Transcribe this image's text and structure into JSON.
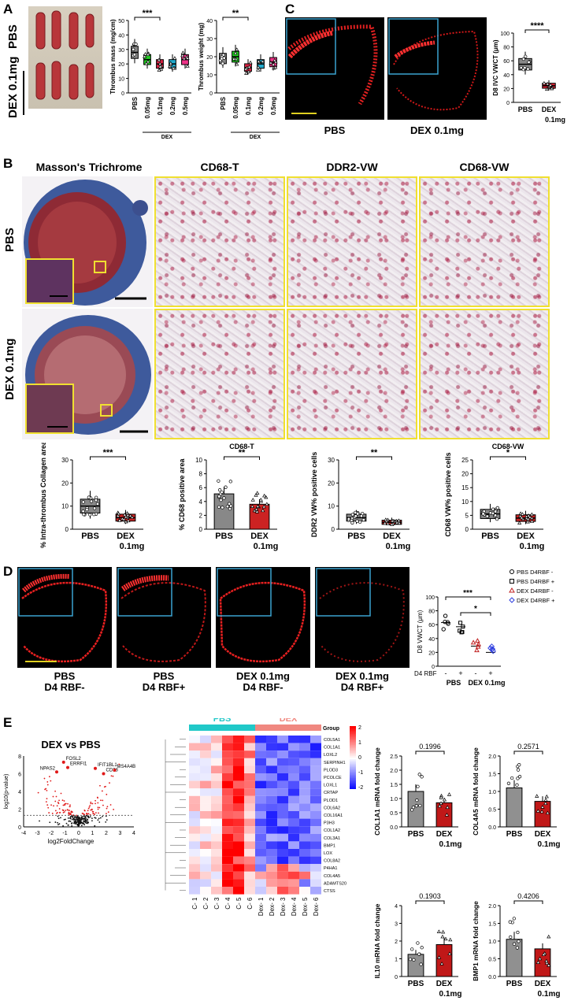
{
  "panels": {
    "A": "A",
    "B": "B",
    "C": "C",
    "D": "D",
    "E": "E"
  },
  "panelA": {
    "row_labels": [
      "PBS",
      "DEX 0.1mg"
    ],
    "chart1": {
      "ylabel": "Thrombus mass (mg/cm)",
      "xticks": [
        "PBS",
        "0.05mg",
        "0.1mg",
        "0.2mg",
        "0.5mg"
      ],
      "group": "DEX",
      "sig": "***",
      "yticks": [
        "0",
        "10",
        "20",
        "30",
        "40",
        "50"
      ]
    },
    "chart2": {
      "ylabel": "Thrombus weight (mg)",
      "xticks": [
        "PBS",
        "0.05mg",
        "0.1mg",
        "0.2mg",
        "0.5mg"
      ],
      "group": "DEX",
      "sig": "**",
      "yticks": [
        "0",
        "10",
        "20",
        "30",
        "40"
      ]
    }
  },
  "panelC": {
    "labels": [
      "PBS",
      "DEX 0.1mg"
    ],
    "chart": {
      "ylabel": "D8 IVC VWCT (μm)",
      "xticks": [
        "PBS",
        "DEX",
        "0.1mg"
      ],
      "sig": "****",
      "yticks": [
        "0",
        "20",
        "40",
        "60",
        "80",
        "100"
      ]
    }
  },
  "panelB": {
    "col_titles": [
      "Masson's Trichrome",
      "CD68-T",
      "DDR2-VW",
      "CD68-VW"
    ],
    "row_labels": [
      "PBS",
      "DEX 0.1mg"
    ],
    "charts": [
      {
        "title": "",
        "ylabel": "% Intra-thrombus Collagen area",
        "xticks": [
          "PBS",
          "DEX",
          "0.1mg"
        ],
        "sig": "***",
        "yticks": [
          "0",
          "10",
          "20",
          "30"
        ]
      },
      {
        "title": "CD68-T",
        "ylabel": "% CD68 positive area",
        "xticks": [
          "PBS",
          "DEX",
          "0.1mg"
        ],
        "sig": "**",
        "yticks": [
          "0",
          "2",
          "4",
          "6",
          "8",
          "10"
        ]
      },
      {
        "title": "",
        "ylabel": "DDR2 VW% positive cells",
        "xticks": [
          "PBS",
          "DEX",
          "0.1mg"
        ],
        "sig": "**",
        "yticks": [
          "0",
          "10",
          "20",
          "30"
        ]
      },
      {
        "title": "CD68-VW",
        "ylabel": "CD68 VW% positive cells",
        "xticks": [
          "PBS",
          "DEX",
          "0.1mg"
        ],
        "sig": "*",
        "yticks": [
          "0",
          "5",
          "10",
          "15",
          "20",
          "25"
        ]
      }
    ]
  },
  "panelD": {
    "labels": [
      "PBS\nD4 RBF-",
      "PBS\nD4 RBF+",
      "DEX 0.1mg\nD4 RBF-",
      "DEX 0.1mg\nD4 RBF+"
    ],
    "chart": {
      "ylabel": "D8 VWCT (μm)",
      "sig1": "***",
      "sig2": "*",
      "rbf_label": "D4 RBF",
      "rbf_signs": [
        "-",
        "+",
        "-",
        "+"
      ],
      "xgroups": [
        "PBS",
        "DEX 0.1mg"
      ],
      "yticks": [
        "0",
        "20",
        "40",
        "60",
        "80",
        "100"
      ]
    },
    "legend": [
      "PBS D4RBF -",
      "PBS D4RBF +",
      "DEX D4RBF -",
      "DEX D4RBF +"
    ]
  },
  "panelE": {
    "volcano": {
      "title": "DEX vs PBS",
      "xlabel": "log2FoldChange",
      "ylabel": "log10(p-value)",
      "genes": [
        "FOSL2",
        "ERRFI1",
        "NPAS2",
        "IFIT1BL1",
        "CD28",
        "MS4A4B"
      ],
      "xticks": [
        "-4",
        "-3",
        "-2",
        "-1",
        "0",
        "1",
        "2",
        "3",
        "4"
      ],
      "yticks": [
        "0",
        "2",
        "4",
        "6",
        "8"
      ]
    },
    "heatmap": {
      "groups": [
        "PBS",
        "DEX"
      ],
      "group_label": "Group",
      "genes": [
        "COL5A1",
        "COL1A1",
        "LOXL2",
        "SERPINH1",
        "PLOD3",
        "PCOLCE",
        "LOXL1",
        "CRTAP",
        "PLOD1",
        "COL6A2",
        "COL16A1",
        "P3H3",
        "COL1A2",
        "COL3A1",
        "BMP1",
        "LOX",
        "COL8A2",
        "P4HA1",
        "COL4A5",
        "ADAMTS20",
        "CTSS"
      ],
      "samples": [
        "C- 1",
        "C- 2",
        "C- 3",
        "C- 4",
        "C- 5",
        "C- 6",
        "Dex- 1",
        "Dex- 2",
        "Dex- 3",
        "Dex- 4",
        "Dex- 5",
        "Dex- 6"
      ],
      "scale": [
        "2",
        "1",
        "0",
        "-1",
        "-2"
      ]
    },
    "bars": [
      {
        "ylabel": "COL1A1 mRNA fold change",
        "p": "0.1996",
        "xticks": [
          "PBS",
          "DEX",
          "0.1mg"
        ],
        "yticks": [
          "0.0",
          "0.5",
          "1.0",
          "1.5",
          "2.0",
          "2.5"
        ]
      },
      {
        "ylabel": "COL4A5 mRNA fold change",
        "p": "0.2571",
        "xticks": [
          "PBS",
          "DEX",
          "0.1mg"
        ],
        "yticks": [
          "0.0",
          "0.5",
          "1.0",
          "1.5",
          "2.0"
        ]
      },
      {
        "ylabel": "IL10 mRNA fold change",
        "p": "0.1903",
        "xticks": [
          "PBS",
          "DEX",
          "0.1mg"
        ],
        "yticks": [
          "0",
          "1",
          "2",
          "3",
          "4"
        ]
      },
      {
        "ylabel": "BMP1 mRNA fold change",
        "p": "0.4206",
        "xticks": [
          "PBS",
          "DEX",
          "0.1mg"
        ],
        "yticks": [
          "0.0",
          "0.5",
          "1.0",
          "1.5",
          "2.0"
        ]
      }
    ]
  },
  "chart_data": [
    {
      "type": "box",
      "panel": "A-1",
      "categories": [
        "PBS",
        "0.05mg",
        "0.1mg",
        "0.2mg",
        "0.5mg"
      ],
      "medians": [
        28,
        23,
        20,
        20,
        23
      ],
      "colors": [
        "#888888",
        "#22cc22",
        "#dd2244",
        "#22aacc",
        "#ee3388"
      ],
      "ylim": [
        0,
        50
      ]
    },
    {
      "type": "box",
      "panel": "A-2",
      "categories": [
        "PBS",
        "0.05mg",
        "0.1mg",
        "0.2mg",
        "0.5mg"
      ],
      "medians": [
        19,
        20,
        14,
        16,
        17
      ],
      "colors": [
        "#888888",
        "#22cc22",
        "#dd2244",
        "#22aacc",
        "#ee3388"
      ],
      "ylim": [
        0,
        40
      ]
    },
    {
      "type": "box",
      "panel": "C",
      "categories": [
        "PBS",
        "DEX 0.1mg"
      ],
      "medians": [
        55,
        24
      ],
      "colors": [
        "#888888",
        "#dd2233"
      ],
      "ylim": [
        0,
        100
      ]
    },
    {
      "type": "box",
      "panel": "B-1",
      "categories": [
        "PBS",
        "DEX 0.1mg"
      ],
      "medians": [
        10,
        5
      ],
      "colors": [
        "#888888",
        "#cc2222"
      ],
      "ylim": [
        0,
        30
      ]
    },
    {
      "type": "bar",
      "panel": "B-2",
      "categories": [
        "PBS",
        "DEX 0.1mg"
      ],
      "values": [
        5.1,
        3.6
      ],
      "colors": [
        "#888888",
        "#cc2222"
      ],
      "ylim": [
        0,
        10
      ]
    },
    {
      "type": "box",
      "panel": "B-3",
      "categories": [
        "PBS",
        "DEX 0.1mg"
      ],
      "medians": [
        5,
        3
      ],
      "colors": [
        "#888888",
        "#cc2222"
      ],
      "ylim": [
        0,
        30
      ]
    },
    {
      "type": "box",
      "panel": "B-4",
      "categories": [
        "PBS",
        "DEX 0.1mg"
      ],
      "medians": [
        5.5,
        4
      ],
      "colors": [
        "#888888",
        "#cc2222"
      ],
      "ylim": [
        0,
        25
      ]
    },
    {
      "type": "scatter",
      "panel": "D",
      "categories": [
        "PBS D4RBF -",
        "PBS D4RBF +",
        "DEX D4RBF -",
        "DEX D4RBF +"
      ],
      "means": [
        63,
        57,
        29,
        20
      ],
      "ylim": [
        0,
        100
      ]
    },
    {
      "type": "bar",
      "panel": "E-COL1A1",
      "categories": [
        "PBS",
        "DEX 0.1mg"
      ],
      "values": [
        1.25,
        0.85
      ],
      "ylim": [
        0,
        2.5
      ]
    },
    {
      "type": "bar",
      "panel": "E-COL4A5",
      "categories": [
        "PBS",
        "DEX 0.1mg"
      ],
      "values": [
        1.1,
        0.72
      ],
      "ylim": [
        0,
        2.0
      ]
    },
    {
      "type": "bar",
      "panel": "E-IL10",
      "categories": [
        "PBS",
        "DEX 0.1mg"
      ],
      "values": [
        1.25,
        1.8
      ],
      "ylim": [
        0,
        4
      ]
    },
    {
      "type": "bar",
      "panel": "E-BMP1",
      "categories": [
        "PBS",
        "DEX 0.1mg"
      ],
      "values": [
        1.05,
        0.78
      ],
      "ylim": [
        0,
        2.0
      ]
    }
  ]
}
